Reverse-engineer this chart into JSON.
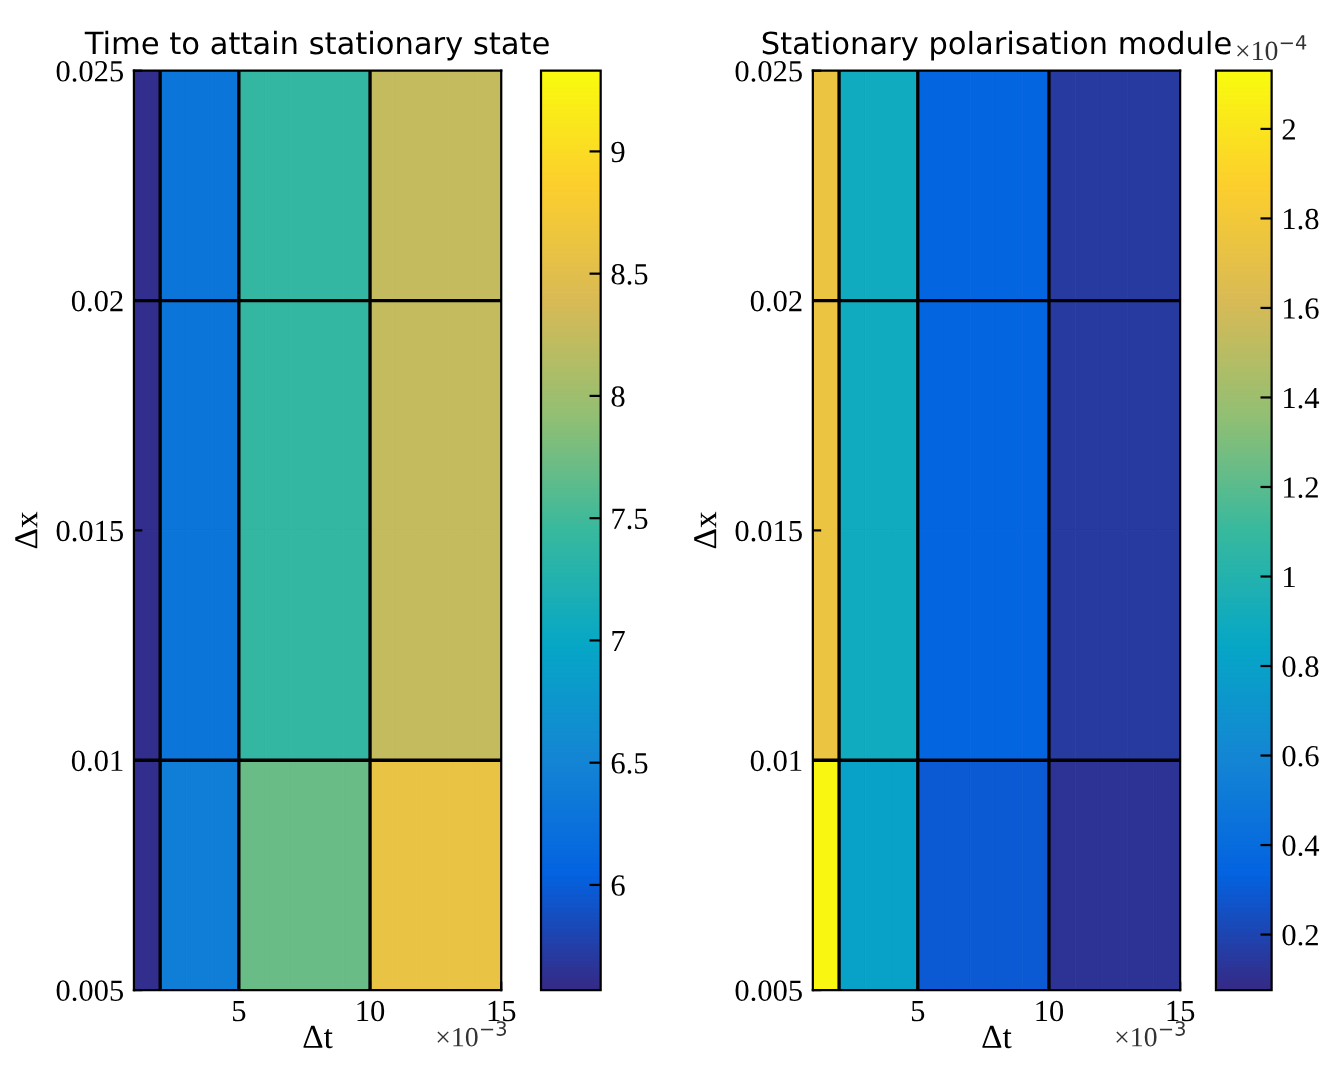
{
  "chart_data": [
    {
      "type": "heatmap",
      "title": "Time to attain stationary state",
      "xlabel": "Δt",
      "ylabel": "Δx",
      "cells": [
        [
          5.6,
          6.3,
          6.3,
          6.3,
          7.4,
          7.4,
          7.4,
          7.4,
          7.4,
          8.25,
          8.25,
          8.25,
          8.25,
          8.25
        ],
        [
          5.6,
          6.3,
          6.3,
          6.3,
          7.4,
          7.4,
          7.4,
          7.4,
          7.4,
          8.25,
          8.25,
          8.25,
          8.25,
          8.25
        ],
        [
          5.6,
          6.3,
          6.3,
          6.3,
          7.4,
          7.4,
          7.4,
          7.4,
          7.4,
          8.25,
          8.25,
          8.25,
          8.25,
          8.25
        ],
        [
          5.6,
          6.4,
          6.4,
          6.4,
          7.7,
          7.7,
          7.7,
          7.7,
          7.7,
          8.6,
          8.6,
          8.6,
          8.6,
          8.6
        ]
      ],
      "xlim": [
        1,
        15
      ],
      "xticks": [
        5,
        10,
        15
      ],
      "ylim": [
        0.005,
        0.025
      ],
      "yticks": [
        0.005,
        0.01,
        0.015,
        0.02,
        0.025
      ],
      "clim": [
        5.57,
        9.33
      ],
      "cticks": [
        6,
        6.5,
        7,
        7.5,
        8,
        8.5,
        9
      ],
      "colors": [
        "#352a87",
        "#0363e1",
        "#1485d4",
        "#06a7c6",
        "#38b99e",
        "#92bf73",
        "#d9ba56",
        "#fcce2e",
        "#f9fb0e"
      ],
      "ref_lines": [
        {
          "axis": "x",
          "value": 2,
          "color": "#000000"
        },
        {
          "axis": "x",
          "value": 5,
          "color": "#000000"
        },
        {
          "axis": "x",
          "value": 10,
          "color": "#000000"
        },
        {
          "axis": "y",
          "value": 0.01,
          "color": "#000000"
        },
        {
          "axis": "y",
          "value": 0.02,
          "color": "#000000"
        }
      ],
      "annotations": [
        "×10$^{−3}$"
      ]
    },
    {
      "type": "heatmap",
      "title": "Stationary polarisation module",
      "xlabel": "Δt",
      "ylabel": "Δx",
      "cells": [
        [
          1.75,
          0.9,
          0.9,
          0.9,
          0.35,
          0.35,
          0.35,
          0.35,
          0.35,
          0.15,
          0.15,
          0.15,
          0.15,
          0.15
        ],
        [
          1.75,
          0.9,
          0.9,
          0.9,
          0.35,
          0.35,
          0.35,
          0.35,
          0.35,
          0.15,
          0.15,
          0.15,
          0.15,
          0.15
        ],
        [
          1.75,
          0.9,
          0.9,
          0.9,
          0.35,
          0.35,
          0.35,
          0.35,
          0.35,
          0.15,
          0.15,
          0.15,
          0.15,
          0.15
        ],
        [
          2.1,
          0.8,
          0.8,
          0.8,
          0.3,
          0.3,
          0.3,
          0.3,
          0.3,
          0.12,
          0.12,
          0.12,
          0.12,
          0.12
        ]
      ],
      "xlim": [
        1,
        15
      ],
      "xticks": [
        5,
        10,
        15
      ],
      "ylim": [
        0.005,
        0.025
      ],
      "yticks": [
        0.005,
        0.01,
        0.015,
        0.02,
        0.025
      ],
      "clim": [
        0.076,
        2.13
      ],
      "cticks": [
        0.2,
        0.4,
        0.6,
        0.8,
        1,
        1.2,
        1.4,
        1.6,
        1.8,
        2
      ],
      "colors": [
        "#352a87",
        "#0363e1",
        "#1485d4",
        "#06a7c6",
        "#38b99e",
        "#92bf73",
        "#d9ba56",
        "#fcce2e",
        "#f9fb0e"
      ],
      "ref_lines": [
        {
          "axis": "x",
          "value": 2,
          "color": "#000000"
        },
        {
          "axis": "x",
          "value": 5,
          "color": "#000000"
        },
        {
          "axis": "x",
          "value": 10,
          "color": "#000000"
        },
        {
          "axis": "y",
          "value": 0.01,
          "color": "#000000"
        },
        {
          "axis": "y",
          "value": 0.02,
          "color": "#000000"
        }
      ],
      "annotations": [
        "×10$^{−3}$",
        "×10$^{−4}$"
      ]
    }
  ]
}
